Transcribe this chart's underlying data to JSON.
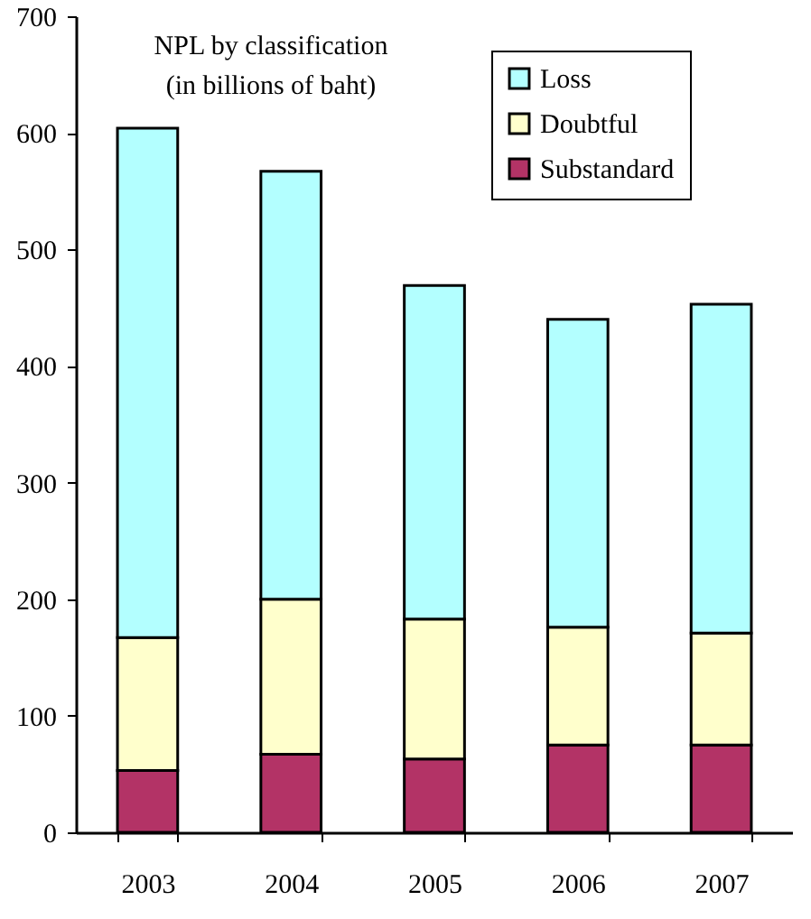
{
  "chart_data": {
    "type": "bar",
    "stacked": true,
    "title": "NPL by classification",
    "subtitle": "(in billions of baht)",
    "categories": [
      "2003",
      "2004",
      "2005",
      "2006",
      "2007"
    ],
    "series": [
      {
        "name": "Substandard",
        "color": "#b33366",
        "values": [
          53,
          67,
          63,
          75,
          75
        ]
      },
      {
        "name": "Doubtful",
        "color": "#ffffcc",
        "values": [
          114,
          133,
          120,
          101,
          96
        ]
      },
      {
        "name": "Loss",
        "color": "#b3ffff",
        "values": [
          437,
          367,
          286,
          264,
          282
        ]
      }
    ],
    "ylim": [
      0,
      700
    ],
    "yticks": [
      0,
      100,
      200,
      300,
      400,
      500,
      600,
      700
    ],
    "grid": false,
    "legend": "top right"
  }
}
